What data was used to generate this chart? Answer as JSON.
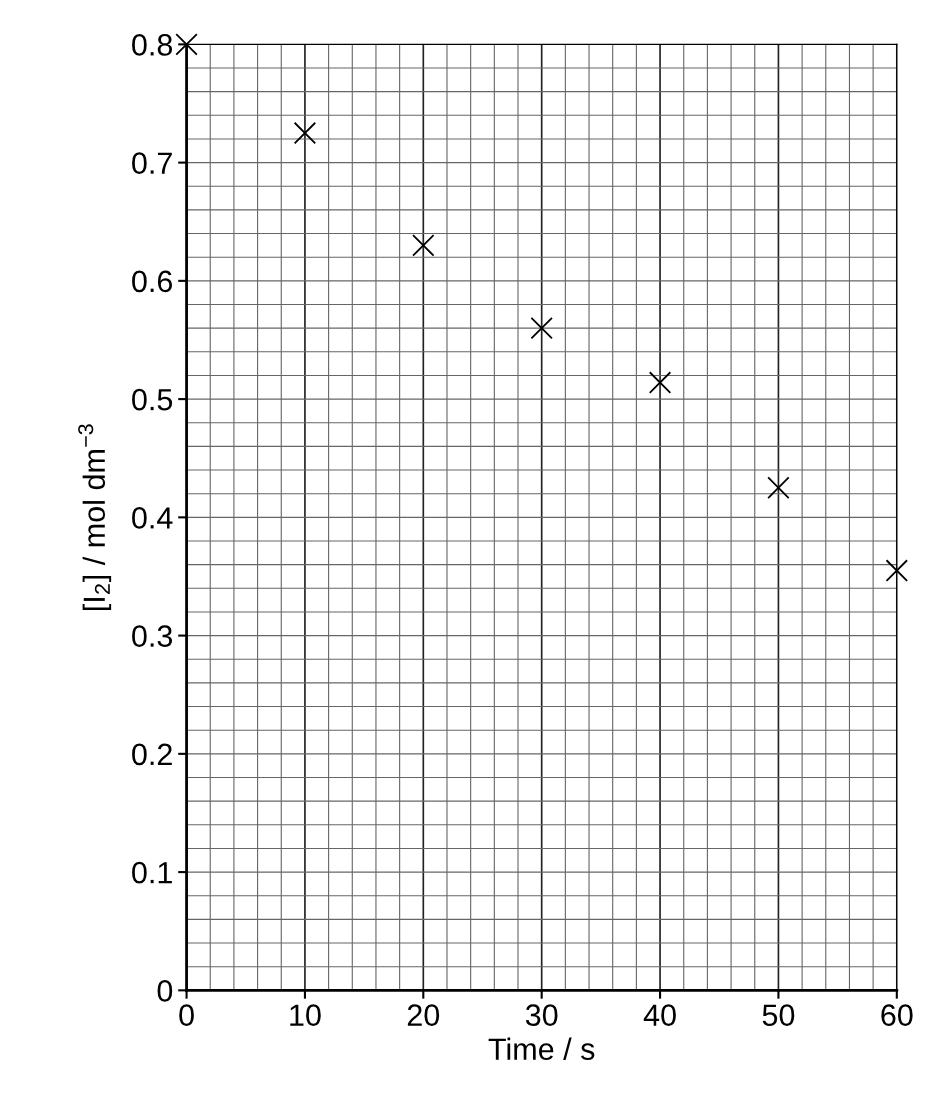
{
  "chart_data": {
    "type": "scatter",
    "xlabel": "Time / s",
    "ylabel": "[I$_{2}$] / mol dm$^{−3}$",
    "x": [
      0,
      10,
      20,
      30,
      40,
      50,
      60
    ],
    "series": [
      {
        "color": "#000000",
        "values": [
          0.8,
          0.725,
          0.63,
          0.56,
          0.514,
          0.425,
          0.355
        ]
      }
    ],
    "marker": "cross",
    "grid": true,
    "xlim": [
      0,
      60
    ],
    "ylim": [
      0,
      0.8
    ],
    "xticks": [
      0,
      10,
      20,
      30,
      40,
      50,
      60
    ],
    "yticks": [
      0,
      0.1,
      0.2,
      0.3,
      0.4,
      0.5,
      0.6,
      0.7,
      0.8
    ]
  }
}
